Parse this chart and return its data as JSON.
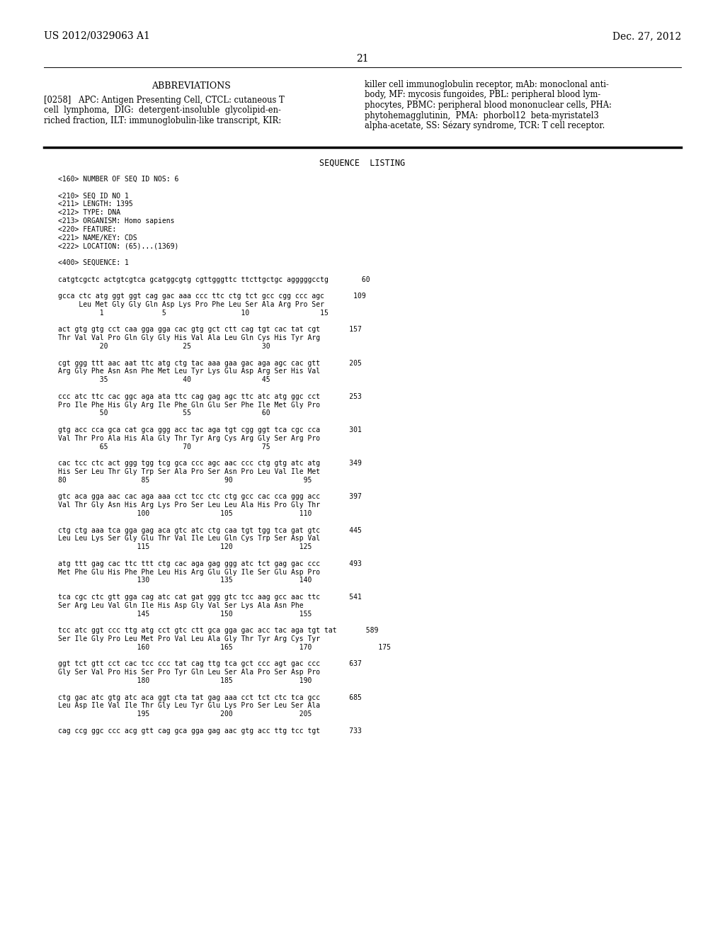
{
  "background_color": "#ffffff",
  "header_left": "US 2012/0329063 A1",
  "header_right": "Dec. 27, 2012",
  "page_number": "21",
  "section_title": "ABBREVIATIONS",
  "abbrev_left_line1": "[0258]   APC: Antigen Presenting Cell, CTCL: cutaneous T",
  "abbrev_left_line2": "cell  lymphoma,  DIG:  detergent-insoluble  glycolipid-en-",
  "abbrev_left_line3": "riched fraction, ILT: immunoglobulin-like transcript, KIR:",
  "abbrev_right_line1": "killer cell immunoglobulin receptor, mAb: monoclonal anti-",
  "abbrev_right_line2": "body, MF: mycosis fungoides, PBL: peripheral blood lym-",
  "abbrev_right_line3": "phocytes, PBMC: peripheral blood mononuclear cells, PHA:",
  "abbrev_right_line4": "phytohemagglutinin,  PMA:  phorbol12  beta-myristatel3",
  "abbrev_right_line5": "alpha-acetate, SS: Sézary syndrome, TCR: T cell receptor.",
  "seq_listing_title": "SEQUENCE  LISTING",
  "seq_lines": [
    "<160> NUMBER OF SEQ ID NOS: 6",
    "",
    "<210> SEQ ID NO 1",
    "<211> LENGTH: 1395",
    "<212> TYPE: DNA",
    "<213> ORGANISM: Homo sapiens",
    "<220> FEATURE:",
    "<221> NAME/KEY: CDS",
    "<222> LOCATION: (65)...(1369)",
    "",
    "<400> SEQUENCE: 1",
    "",
    "catgtcgctc actgtcgtca gcatggcgtg cgttgggttc ttcttgctgc agggggcctg        60",
    "",
    "gcca ctc atg ggt ggt cag gac aaa ccc ttc ctg tct gcc cgg ccc agc       109",
    "     Leu Met Gly Gly Gln Asp Lys Pro Phe Leu Ser Ala Arg Pro Ser",
    "          1              5                  10                 15",
    "",
    "act gtg gtg cct caa gga gga cac gtg gct ctt cag tgt cac tat cgt       157",
    "Thr Val Val Pro Gln Gly Gly His Val Ala Leu Gln Cys His Tyr Arg",
    "          20                  25                 30",
    "",
    "cgt ggg ttt aac aat ttc atg ctg tac aaa gaa gac aga agc cac gtt       205",
    "Arg Gly Phe Asn Asn Phe Met Leu Tyr Lys Glu Asp Arg Ser His Val",
    "          35                  40                 45",
    "",
    "ccc atc ttc cac ggc aga ata ttc cag gag agc ttc atc atg ggc cct       253",
    "Pro Ile Phe His Gly Arg Ile Phe Gln Glu Ser Phe Ile Met Gly Pro",
    "          50                  55                 60",
    "",
    "gtg acc cca gca cat gca ggg acc tac aga tgt cgg ggt tca cgc cca       301",
    "Val Thr Pro Ala His Ala Gly Thr Tyr Arg Cys Arg Gly Ser Arg Pro",
    "          65                  70                 75",
    "",
    "cac tcc ctc act ggg tgg tcg gca ccc agc aac ccc ctg gtg atc atg       349",
    "His Ser Leu Thr Gly Trp Ser Ala Pro Ser Asn Pro Leu Val Ile Met",
    "80                  85                  90                 95",
    "",
    "gtc aca gga aac cac aga aaa cct tcc ctc ctg gcc cac cca ggg acc       397",
    "Val Thr Gly Asn His Arg Lys Pro Ser Leu Leu Ala His Pro Gly Thr",
    "                   100                 105                110",
    "",
    "ctg ctg aaa tca gga gag aca gtc atc ctg caa tgt tgg tca gat gtc       445",
    "Leu Leu Lys Ser Gly Glu Thr Val Ile Leu Gln Cys Trp Ser Asp Val",
    "                   115                 120                125",
    "",
    "atg ttt gag cac ttc ttt ctg cac aga gag ggg atc tct gag gac ccc       493",
    "Met Phe Glu His Phe Phe Leu His Arg Glu Gly Ile Ser Glu Asp Pro",
    "                   130                 135                140",
    "",
    "tca cgc ctc gtt gga cag atc cat gat ggg gtc tcc aag gcc aac ttc       541",
    "Ser Arg Leu Val Gln Ile His Asp Gly Val Ser Lys Ala Asn Phe",
    "                   145                 150                155",
    "",
    "tcc atc ggt ccc ttg atg cct gtc ctt gca gga gac acc tac aga tgt tat       589",
    "Ser Ile Gly Pro Leu Met Pro Val Leu Ala Gly Thr Tyr Arg Cys Tyr",
    "                   160                 165                170                175",
    "",
    "ggt tct gtt cct cac tcc ccc tat cag ttg tca gct ccc agt gac ccc       637",
    "Gly Ser Val Pro His Ser Pro Tyr Gln Leu Ser Ala Pro Ser Asp Pro",
    "                   180                 185                190",
    "",
    "ctg gac atc gtg atc aca ggt cta tat gag aaa cct tct ctc tca gcc       685",
    "Leu Asp Ile Val Ile Thr Gly Leu Tyr Glu Lys Pro Ser Leu Ser Ala",
    "                   195                 200                205",
    "",
    "cag ccg ggc ccc acg gtt cag gca gga gag aac gtg acc ttg tcc tgt       733"
  ]
}
